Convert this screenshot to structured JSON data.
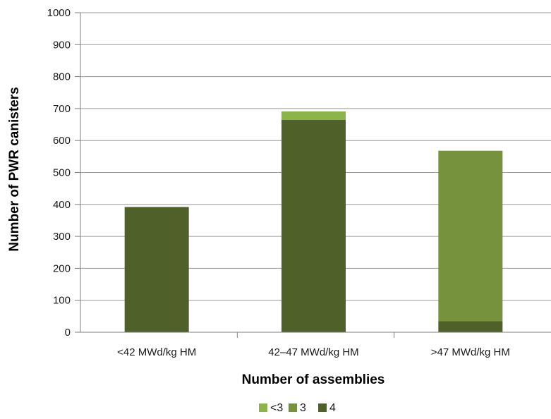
{
  "chart_data": {
    "type": "bar",
    "stacked": true,
    "categories": [
      "<42 MWd/kg HM",
      "42–47 MWd/kg HM",
      ">47 MWd/kg HM"
    ],
    "series": [
      {
        "name": "4",
        "color": "#4f6129",
        "values": [
          392,
          665,
          35
        ]
      },
      {
        "name": "3",
        "color": "#76923c",
        "values": [
          0,
          0,
          533
        ]
      },
      {
        "name": "<3",
        "color": "#8db44a",
        "values": [
          0,
          26,
          0
        ]
      }
    ],
    "legend_order": [
      "<3",
      "3",
      "4"
    ],
    "xlabel": "Number of assemblies",
    "ylabel": "Number of PWR canisters",
    "ylim": [
      0,
      1000
    ],
    "yticks": [
      0,
      100,
      200,
      300,
      400,
      500,
      600,
      700,
      800,
      900,
      1000
    ],
    "grid": true,
    "legend_position": "bottom"
  }
}
